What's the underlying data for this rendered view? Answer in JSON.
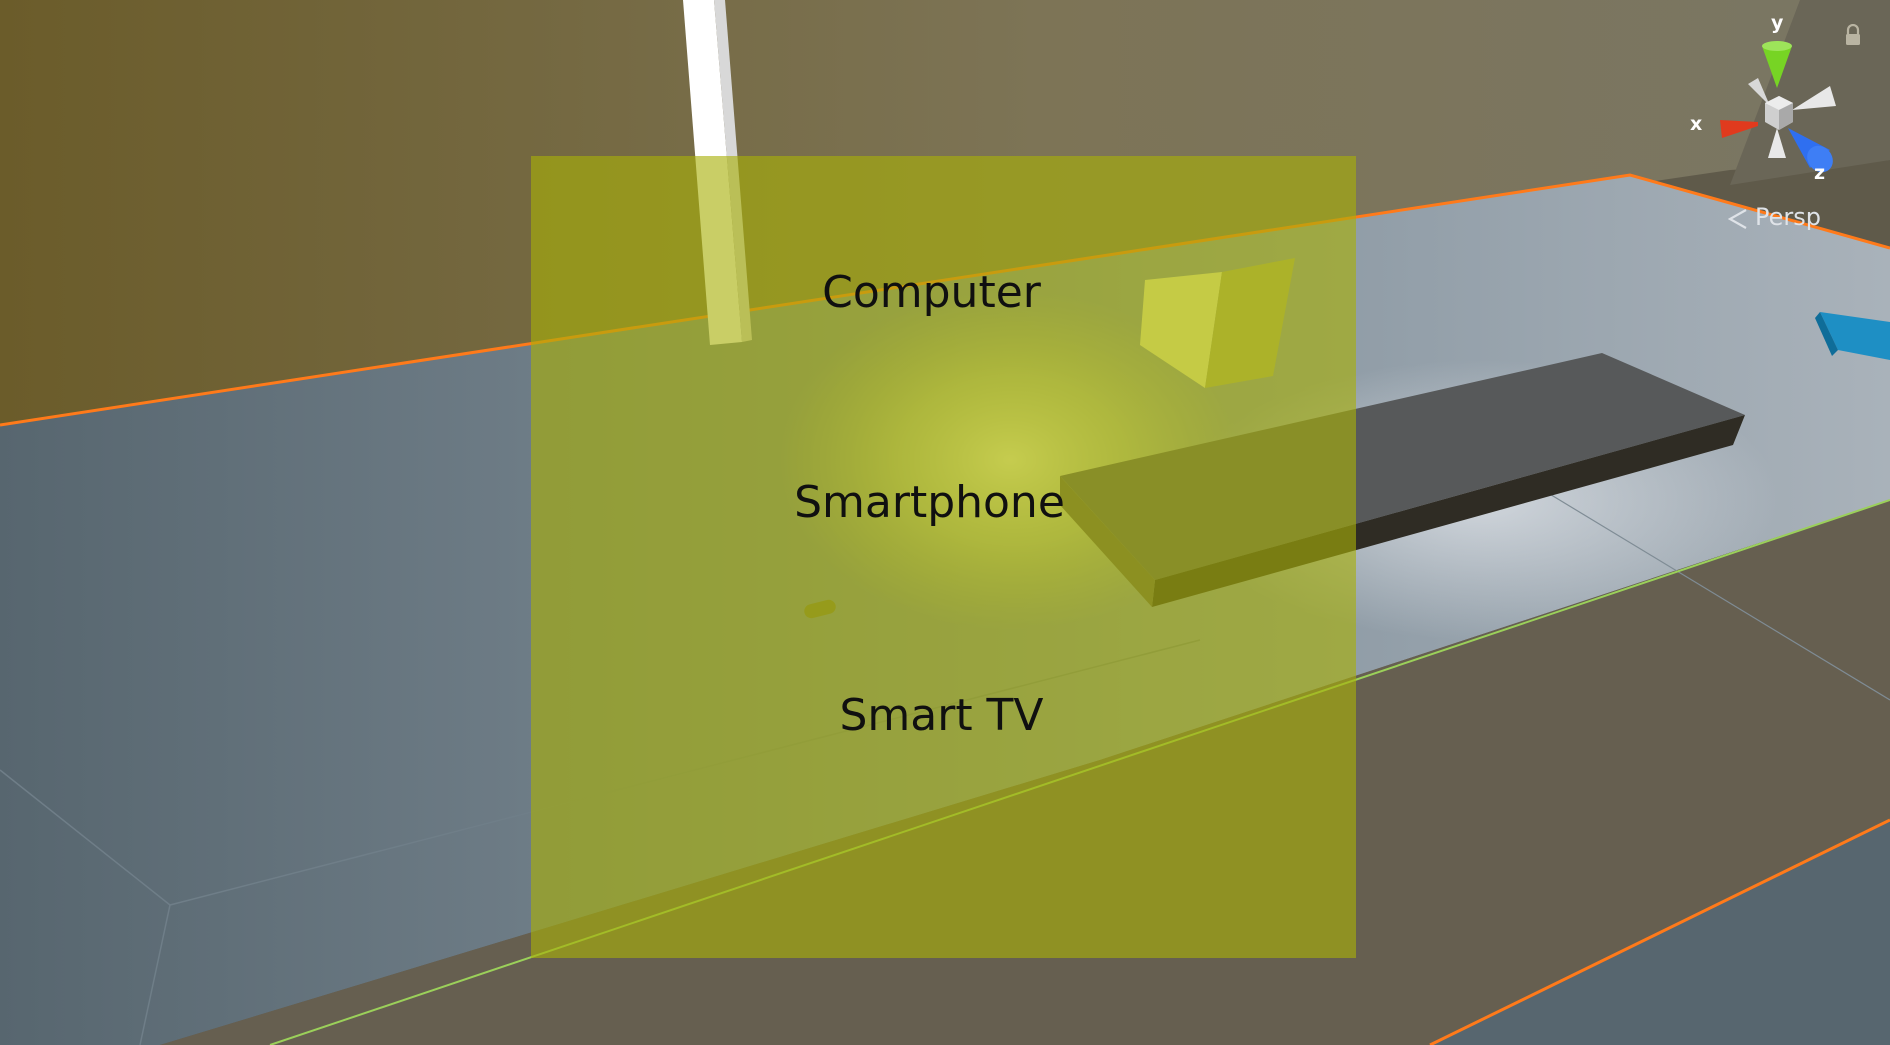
{
  "scene": {
    "menu_items": [
      {
        "label": "Computer"
      },
      {
        "label": "Smartphone"
      },
      {
        "label": "Smart TV"
      }
    ],
    "camera_mode": "Persp",
    "gizmo_axes": {
      "x": "x",
      "y": "y",
      "z": "z"
    },
    "icons": {
      "orientation_gizmo": "axis-gizmo-icon",
      "lock": "lock-icon",
      "perspective_toggle": "chevron-left-icon"
    },
    "colors": {
      "overlay": "#a8b008",
      "x_axis": "#e03a1e",
      "y_axis": "#77d424",
      "z_axis": "#2f6ff0",
      "selection_outline": "#ff7a1a",
      "floor": "#8b99a3",
      "wall": "#6a5f2e"
    }
  }
}
